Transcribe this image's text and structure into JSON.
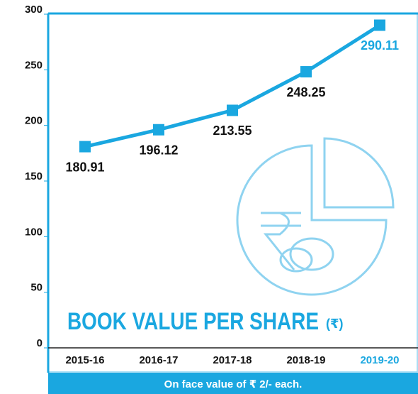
{
  "chart_data": {
    "type": "line",
    "title": "BOOK VALUE PER SHARE",
    "title_unit": "(₹)",
    "footnote": "On face value of  ₹ 2/- each.",
    "categories": [
      "2015-16",
      "2016-17",
      "2017-18",
      "2018-19",
      "2019-20"
    ],
    "values": [
      180.91,
      196.12,
      213.55,
      248.25,
      290.11
    ],
    "color": "#1aa7e0",
    "highlight_color": "#1aa7e0",
    "ylim": [
      0,
      300
    ],
    "yticks": [
      0,
      50,
      100,
      150,
      200,
      250,
      300
    ]
  }
}
